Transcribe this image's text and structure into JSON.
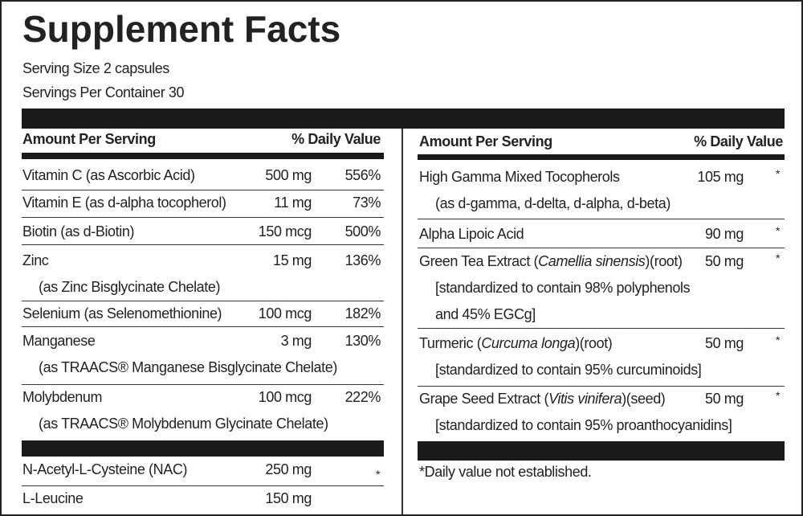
{
  "header": {
    "title": "Supplement Facts",
    "serving_size": "Serving Size 2 capsules",
    "servings_per_container": "Servings Per Container 30"
  },
  "left": {
    "amount_header": "Amount Per Serving",
    "dv_header": "% Daily Value",
    "rows": [
      {
        "name": "Vitamin C (as Ascorbic Acid)",
        "amount": "500 mg",
        "dv": "556%"
      },
      {
        "name": "Vitamin E (as d-alpha tocopherol)",
        "amount": "11 mg",
        "dv": "73%"
      },
      {
        "name": "Biotin (as d-Biotin)",
        "amount": "150 mcg",
        "dv": "500%"
      },
      {
        "name": "Zinc",
        "amount": "15 mg",
        "dv": "136%",
        "sub": "(as Zinc Bisglycinate Chelate)"
      },
      {
        "name": "Selenium (as Selenomethionine)",
        "amount": "100 mcg",
        "dv": "182%"
      },
      {
        "name": "Manganese",
        "amount": "3 mg",
        "dv": "130%",
        "sub": "(as TRAACS® Manganese Bisglycinate Chelate)"
      },
      {
        "name": "Molybdenum",
        "amount": "100 mcg",
        "dv": "222%",
        "sub": "(as TRAACS® Molybdenum Glycinate Chelate)"
      }
    ],
    "other_rows": [
      {
        "name": "N-Acetyl-L-Cysteine (NAC)",
        "amount": "250 mg",
        "dv": "*"
      },
      {
        "name": "L-Leucine",
        "amount": "150 mg"
      }
    ]
  },
  "right": {
    "amount_header": "Amount Per Serving",
    "dv_header": "% Daily Value",
    "rows": [
      {
        "name": "High Gamma Mixed Tocopherols",
        "amount": "105 mg",
        "dv": "*",
        "sub": [
          "(as d-gamma, d-delta, d-alpha, d-beta)"
        ]
      },
      {
        "name": "Alpha Lipoic Acid",
        "amount": "90 mg",
        "dv": "*"
      },
      {
        "name": "Green Tea Extract (",
        "name_italic": "Camellia sinensis",
        "name_after": ")(root)",
        "amount": "50 mg",
        "dv": "*",
        "sub": [
          "[standardized to contain 98% polyphenols",
          "and 45% EGCg]"
        ]
      },
      {
        "name": "Turmeric (",
        "name_italic": "Curcuma longa",
        "name_after": ")(root)",
        "amount": "50 mg",
        "dv": "*",
        "sub": [
          "[standardized to contain 95% curcuminoids]"
        ]
      },
      {
        "name": "Grape Seed Extract (",
        "name_italic": "Vitis vinifera",
        "name_after": ")(seed)",
        "amount": "50 mg",
        "dv": "*",
        "sub": [
          "[standardized to contain 95% proanthocyanidins]"
        ]
      }
    ],
    "footnote": "*Daily value not established."
  }
}
